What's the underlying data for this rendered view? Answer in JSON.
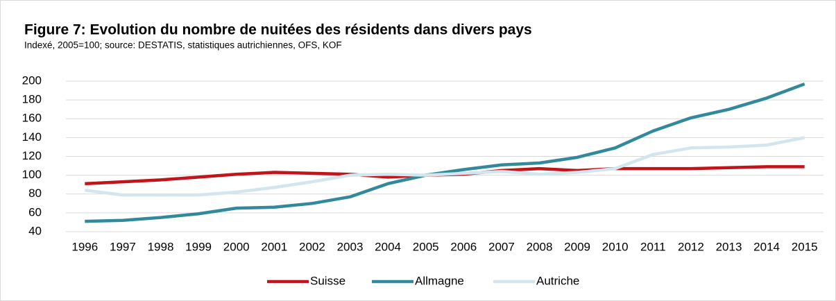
{
  "chart_data": {
    "type": "line",
    "title": "Figure 7: Evolution du nombre de nuitées des résidents dans divers pays",
    "subtitle": "Indexé, 2005=100; source: DESTATIS, statistiques autrichiennes, OFS, KOF",
    "categories": [
      "1996",
      "1997",
      "1998",
      "1999",
      "2000",
      "2001",
      "2002",
      "2003",
      "2004",
      "2005",
      "2006",
      "2007",
      "2008",
      "2009",
      "2010",
      "2011",
      "2012",
      "2013",
      "2014",
      "2015"
    ],
    "series": [
      {
        "name": "Suisse",
        "color": "#c0161b",
        "values": [
          91,
          93,
          95,
          98,
          101,
          103,
          102,
          101,
          98,
          100,
          101,
          105,
          107,
          105,
          107,
          107,
          107,
          108,
          109,
          109
        ]
      },
      {
        "name": "Allmagne",
        "color": "#31899b",
        "values": [
          51,
          52,
          55,
          59,
          65,
          66,
          70,
          77,
          91,
          100,
          106,
          111,
          113,
          119,
          129,
          147,
          161,
          170,
          182,
          197
        ]
      },
      {
        "name": "Autriche",
        "color": "#d3e5ed",
        "values": [
          84,
          79,
          79,
          79,
          82,
          87,
          93,
          100,
          101,
          100,
          102,
          104,
          101,
          103,
          107,
          122,
          129,
          130,
          132,
          140
        ]
      }
    ],
    "ylim": [
      40,
      200
    ],
    "yticks": [
      40,
      60,
      80,
      100,
      120,
      140,
      160,
      180,
      200
    ],
    "grid": true,
    "legend": "bottom"
  }
}
